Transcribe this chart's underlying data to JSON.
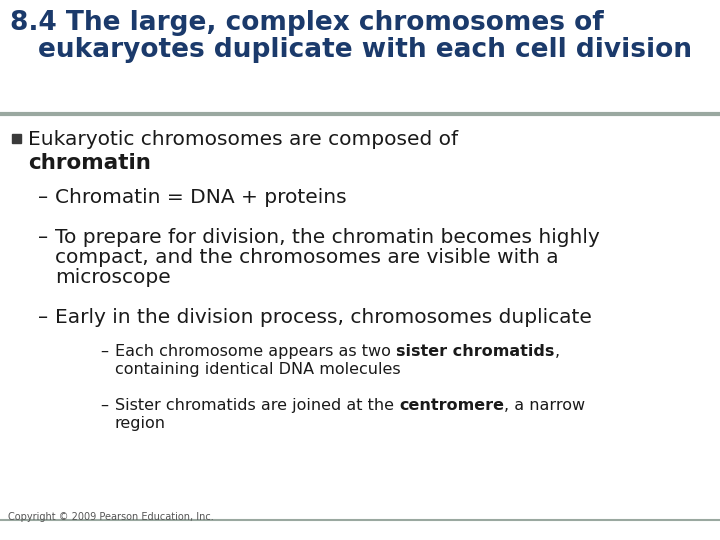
{
  "title_line1": "8.4 The large, complex chromosomes of",
  "title_line2": "eukaryotes duplicate with each cell division",
  "title_color": "#1B3A6B",
  "separator_color": "#9AA8A0",
  "bg_color": "#FFFFFF",
  "text_color": "#1A1A1A",
  "copyright": "Copyright © 2009 Pearson Education, Inc.",
  "title_fontsize": 19,
  "body_fontsize": 14.5,
  "sub_fontsize": 11.5,
  "fig_width": 7.2,
  "fig_height": 5.4,
  "dpi": 100
}
